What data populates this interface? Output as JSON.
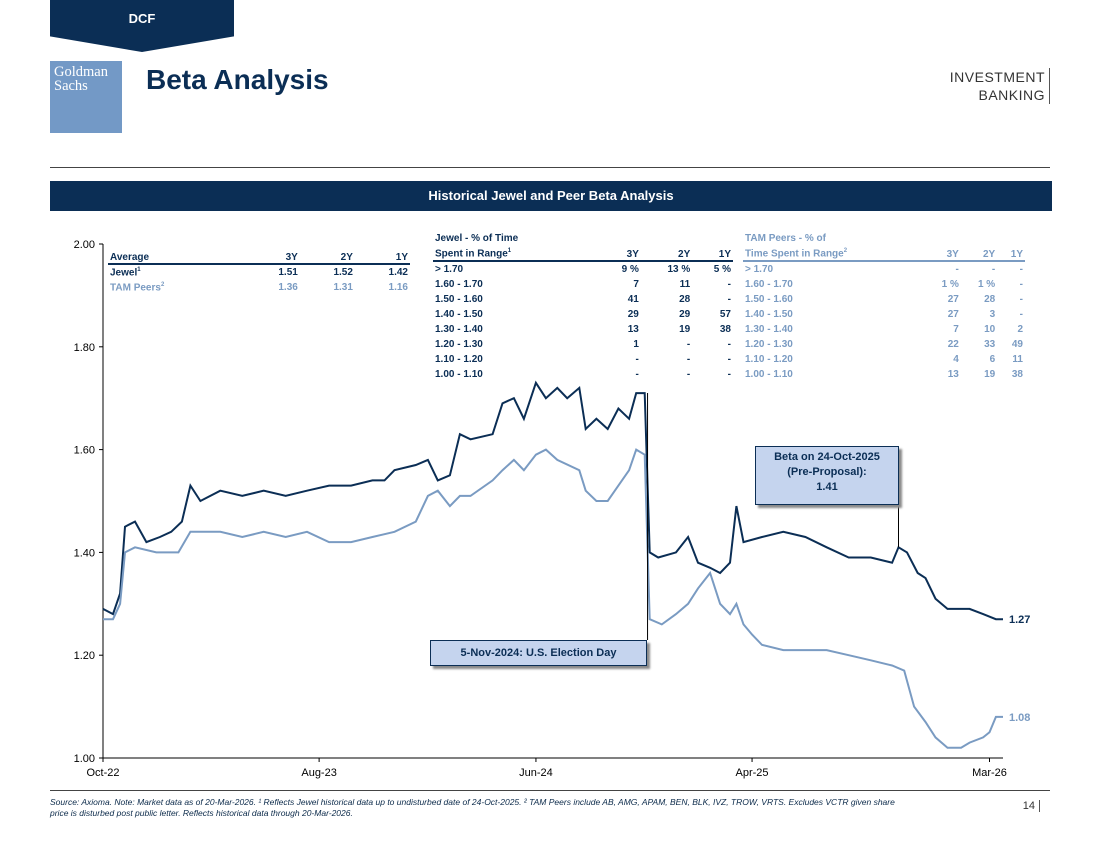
{
  "section_tab": "DCF",
  "logo": {
    "line1": "Goldman",
    "line2": "Sachs"
  },
  "title": "Beta Analysis",
  "division": {
    "line1": "INVESTMENT",
    "line2": "BANKING"
  },
  "banner": "Historical Jewel and Peer Beta Analysis",
  "average_table": {
    "headers": [
      "Average",
      "3Y",
      "2Y",
      "1Y"
    ],
    "rows": [
      {
        "label": "Jewel",
        "sup": "1",
        "values": [
          "1.51",
          "1.52",
          "1.42"
        ]
      },
      {
        "label": "TAM Peers",
        "sup": "2",
        "values": [
          "1.36",
          "1.31",
          "1.16"
        ]
      }
    ]
  },
  "jewel_range_table": {
    "header_line1": "Jewel - % of Time",
    "header_line2": "Spent in Range",
    "header_sup": "1",
    "cols": [
      "3Y",
      "2Y",
      "1Y"
    ],
    "rows": [
      {
        "range": "> 1.70",
        "values": [
          "9 %",
          "13 %",
          "5 %"
        ]
      },
      {
        "range": "1.60 - 1.70",
        "values": [
          "7",
          "11",
          "-"
        ]
      },
      {
        "range": "1.50 - 1.60",
        "values": [
          "41",
          "28",
          "-"
        ]
      },
      {
        "range": "1.40 - 1.50",
        "values": [
          "29",
          "29",
          "57"
        ]
      },
      {
        "range": "1.30 - 1.40",
        "values": [
          "13",
          "19",
          "38"
        ]
      },
      {
        "range": "1.20 - 1.30",
        "values": [
          "1",
          "-",
          "-"
        ]
      },
      {
        "range": "1.10 - 1.20",
        "values": [
          "-",
          "-",
          "-"
        ]
      },
      {
        "range": "1.00 - 1.10",
        "values": [
          "-",
          "-",
          "-"
        ]
      }
    ]
  },
  "peer_range_table": {
    "header_line1": "TAM Peers - % of",
    "header_line2": "Time Spent in Range",
    "header_sup": "2",
    "cols": [
      "3Y",
      "2Y",
      "1Y"
    ],
    "rows": [
      {
        "range": "> 1.70",
        "values": [
          "-",
          "-",
          "-"
        ]
      },
      {
        "range": "1.60 - 1.70",
        "values": [
          "1 %",
          "1 %",
          "-"
        ]
      },
      {
        "range": "1.50 - 1.60",
        "values": [
          "27",
          "28",
          "-"
        ]
      },
      {
        "range": "1.40 - 1.50",
        "values": [
          "27",
          "3",
          "-"
        ]
      },
      {
        "range": "1.30 - 1.40",
        "values": [
          "7",
          "10",
          "2"
        ]
      },
      {
        "range": "1.20 - 1.30",
        "values": [
          "22",
          "33",
          "49"
        ]
      },
      {
        "range": "1.10 - 1.20",
        "values": [
          "4",
          "6",
          "11"
        ]
      },
      {
        "range": "1.00 - 1.10",
        "values": [
          "13",
          "19",
          "38"
        ]
      }
    ]
  },
  "callouts": {
    "pre_proposal": {
      "line1": "Beta on 24-Oct-2025",
      "line2": "(Pre-Proposal):",
      "line3": "1.41"
    },
    "election": "5-Nov-2024: U.S. Election Day"
  },
  "chart_data": {
    "type": "line",
    "ylim": [
      1.0,
      2.0
    ],
    "yticks": [
      1.0,
      1.2,
      1.4,
      1.6,
      1.8,
      2.0
    ],
    "ytick_labels": [
      "1.00",
      "1.20",
      "1.40",
      "1.60",
      "1.80",
      "2.00"
    ],
    "xlim": [
      "2022-10-01",
      "2026-03-20"
    ],
    "xticks": [
      "2022-10-01",
      "2023-08-01",
      "2024-06-01",
      "2025-04-01",
      "2026-03-01"
    ],
    "xtick_labels": [
      "Oct-22",
      "Aug-23",
      "Jun-24",
      "Apr-25",
      "Mar-26"
    ],
    "end_labels": {
      "Jewel": "1.27",
      "TAM Peers": "1.08"
    },
    "annotations": [
      {
        "date": "2024-11-05",
        "value": 1.71
      },
      {
        "date": "2025-10-24",
        "value": 1.41
      }
    ],
    "series": [
      {
        "name": "Jewel",
        "color": "#0b2e55",
        "points": [
          [
            "2022-10-01",
            1.29
          ],
          [
            "2022-10-15",
            1.28
          ],
          [
            "2022-10-25",
            1.32
          ],
          [
            "2022-11-01",
            1.45
          ],
          [
            "2022-11-15",
            1.46
          ],
          [
            "2022-12-01",
            1.42
          ],
          [
            "2022-12-20",
            1.43
          ],
          [
            "2023-01-05",
            1.44
          ],
          [
            "2023-01-20",
            1.46
          ],
          [
            "2023-02-01",
            1.53
          ],
          [
            "2023-02-15",
            1.5
          ],
          [
            "2023-03-15",
            1.52
          ],
          [
            "2023-04-15",
            1.51
          ],
          [
            "2023-05-15",
            1.52
          ],
          [
            "2023-06-15",
            1.51
          ],
          [
            "2023-07-15",
            1.52
          ],
          [
            "2023-08-15",
            1.53
          ],
          [
            "2023-09-15",
            1.53
          ],
          [
            "2023-10-15",
            1.54
          ],
          [
            "2023-11-01",
            1.54
          ],
          [
            "2023-11-15",
            1.56
          ],
          [
            "2023-12-15",
            1.57
          ],
          [
            "2024-01-01",
            1.58
          ],
          [
            "2024-01-15",
            1.54
          ],
          [
            "2024-02-01",
            1.55
          ],
          [
            "2024-02-15",
            1.63
          ],
          [
            "2024-03-01",
            1.62
          ],
          [
            "2024-04-01",
            1.63
          ],
          [
            "2024-04-15",
            1.69
          ],
          [
            "2024-05-01",
            1.7
          ],
          [
            "2024-05-15",
            1.66
          ],
          [
            "2024-06-01",
            1.73
          ],
          [
            "2024-06-15",
            1.7
          ],
          [
            "2024-07-01",
            1.72
          ],
          [
            "2024-07-15",
            1.7
          ],
          [
            "2024-08-01",
            1.72
          ],
          [
            "2024-08-10",
            1.64
          ],
          [
            "2024-08-25",
            1.66
          ],
          [
            "2024-09-10",
            1.64
          ],
          [
            "2024-09-25",
            1.68
          ],
          [
            "2024-10-10",
            1.66
          ],
          [
            "2024-10-20",
            1.71
          ],
          [
            "2024-11-01",
            1.71
          ],
          [
            "2024-11-08",
            1.4
          ],
          [
            "2024-11-20",
            1.39
          ],
          [
            "2024-12-15",
            1.4
          ],
          [
            "2025-01-01",
            1.43
          ],
          [
            "2025-01-15",
            1.38
          ],
          [
            "2025-02-01",
            1.37
          ],
          [
            "2025-02-15",
            1.36
          ],
          [
            "2025-03-01",
            1.38
          ],
          [
            "2025-03-10",
            1.49
          ],
          [
            "2025-03-20",
            1.42
          ],
          [
            "2025-04-15",
            1.43
          ],
          [
            "2025-05-15",
            1.44
          ],
          [
            "2025-06-15",
            1.43
          ],
          [
            "2025-07-15",
            1.41
          ],
          [
            "2025-08-15",
            1.39
          ],
          [
            "2025-09-15",
            1.39
          ],
          [
            "2025-10-15",
            1.38
          ],
          [
            "2025-10-24",
            1.41
          ],
          [
            "2025-11-05",
            1.4
          ],
          [
            "2025-11-20",
            1.36
          ],
          [
            "2025-12-01",
            1.35
          ],
          [
            "2025-12-15",
            1.31
          ],
          [
            "2026-01-01",
            1.29
          ],
          [
            "2026-02-01",
            1.29
          ],
          [
            "2026-02-20",
            1.28
          ],
          [
            "2026-03-10",
            1.27
          ],
          [
            "2026-03-20",
            1.27
          ]
        ]
      },
      {
        "name": "TAM Peers",
        "color": "#7a9bc2",
        "points": [
          [
            "2022-10-01",
            1.27
          ],
          [
            "2022-10-15",
            1.27
          ],
          [
            "2022-10-25",
            1.3
          ],
          [
            "2022-11-01",
            1.4
          ],
          [
            "2022-11-15",
            1.41
          ],
          [
            "2022-12-15",
            1.4
          ],
          [
            "2023-01-15",
            1.4
          ],
          [
            "2023-02-01",
            1.44
          ],
          [
            "2023-03-15",
            1.44
          ],
          [
            "2023-04-15",
            1.43
          ],
          [
            "2023-05-15",
            1.44
          ],
          [
            "2023-06-15",
            1.43
          ],
          [
            "2023-07-15",
            1.44
          ],
          [
            "2023-08-15",
            1.42
          ],
          [
            "2023-09-15",
            1.42
          ],
          [
            "2023-10-15",
            1.43
          ],
          [
            "2023-11-15",
            1.44
          ],
          [
            "2023-12-15",
            1.46
          ],
          [
            "2024-01-01",
            1.51
          ],
          [
            "2024-01-15",
            1.52
          ],
          [
            "2024-02-01",
            1.49
          ],
          [
            "2024-02-15",
            1.51
          ],
          [
            "2024-03-01",
            1.51
          ],
          [
            "2024-04-01",
            1.54
          ],
          [
            "2024-04-15",
            1.56
          ],
          [
            "2024-05-01",
            1.58
          ],
          [
            "2024-05-15",
            1.56
          ],
          [
            "2024-06-01",
            1.59
          ],
          [
            "2024-06-15",
            1.6
          ],
          [
            "2024-07-01",
            1.58
          ],
          [
            "2024-08-01",
            1.56
          ],
          [
            "2024-08-10",
            1.52
          ],
          [
            "2024-08-25",
            1.5
          ],
          [
            "2024-09-10",
            1.5
          ],
          [
            "2024-09-25",
            1.53
          ],
          [
            "2024-10-10",
            1.56
          ],
          [
            "2024-10-20",
            1.6
          ],
          [
            "2024-11-01",
            1.59
          ],
          [
            "2024-11-08",
            1.27
          ],
          [
            "2024-11-25",
            1.26
          ],
          [
            "2024-12-15",
            1.28
          ],
          [
            "2025-01-01",
            1.3
          ],
          [
            "2025-01-15",
            1.33
          ],
          [
            "2025-02-01",
            1.36
          ],
          [
            "2025-02-15",
            1.3
          ],
          [
            "2025-03-01",
            1.28
          ],
          [
            "2025-03-10",
            1.3
          ],
          [
            "2025-03-20",
            1.26
          ],
          [
            "2025-04-01",
            1.24
          ],
          [
            "2025-04-15",
            1.22
          ],
          [
            "2025-05-15",
            1.21
          ],
          [
            "2025-06-15",
            1.21
          ],
          [
            "2025-07-15",
            1.21
          ],
          [
            "2025-08-15",
            1.2
          ],
          [
            "2025-09-15",
            1.19
          ],
          [
            "2025-10-15",
            1.18
          ],
          [
            "2025-11-01",
            1.17
          ],
          [
            "2025-11-15",
            1.1
          ],
          [
            "2025-12-01",
            1.07
          ],
          [
            "2025-12-15",
            1.04
          ],
          [
            "2026-01-01",
            1.02
          ],
          [
            "2026-01-20",
            1.02
          ],
          [
            "2026-02-01",
            1.03
          ],
          [
            "2026-02-20",
            1.04
          ],
          [
            "2026-03-01",
            1.05
          ],
          [
            "2026-03-10",
            1.08
          ],
          [
            "2026-03-20",
            1.08
          ]
        ]
      }
    ]
  },
  "footnote": {
    "line1": "Source: Axioma. Note: Market data as of 20-Mar-2026. ¹ Reflects Jewel historical data up to undisturbed date of 24-Oct-2025. ² TAM Peers include AB, AMG, APAM, BEN, BLK, IVZ, TROW, VRTS. Excludes VCTR given share",
    "line2": "price is disturbed post public letter. Reflects historical data through 20-Mar-2026."
  },
  "page_number": "14"
}
